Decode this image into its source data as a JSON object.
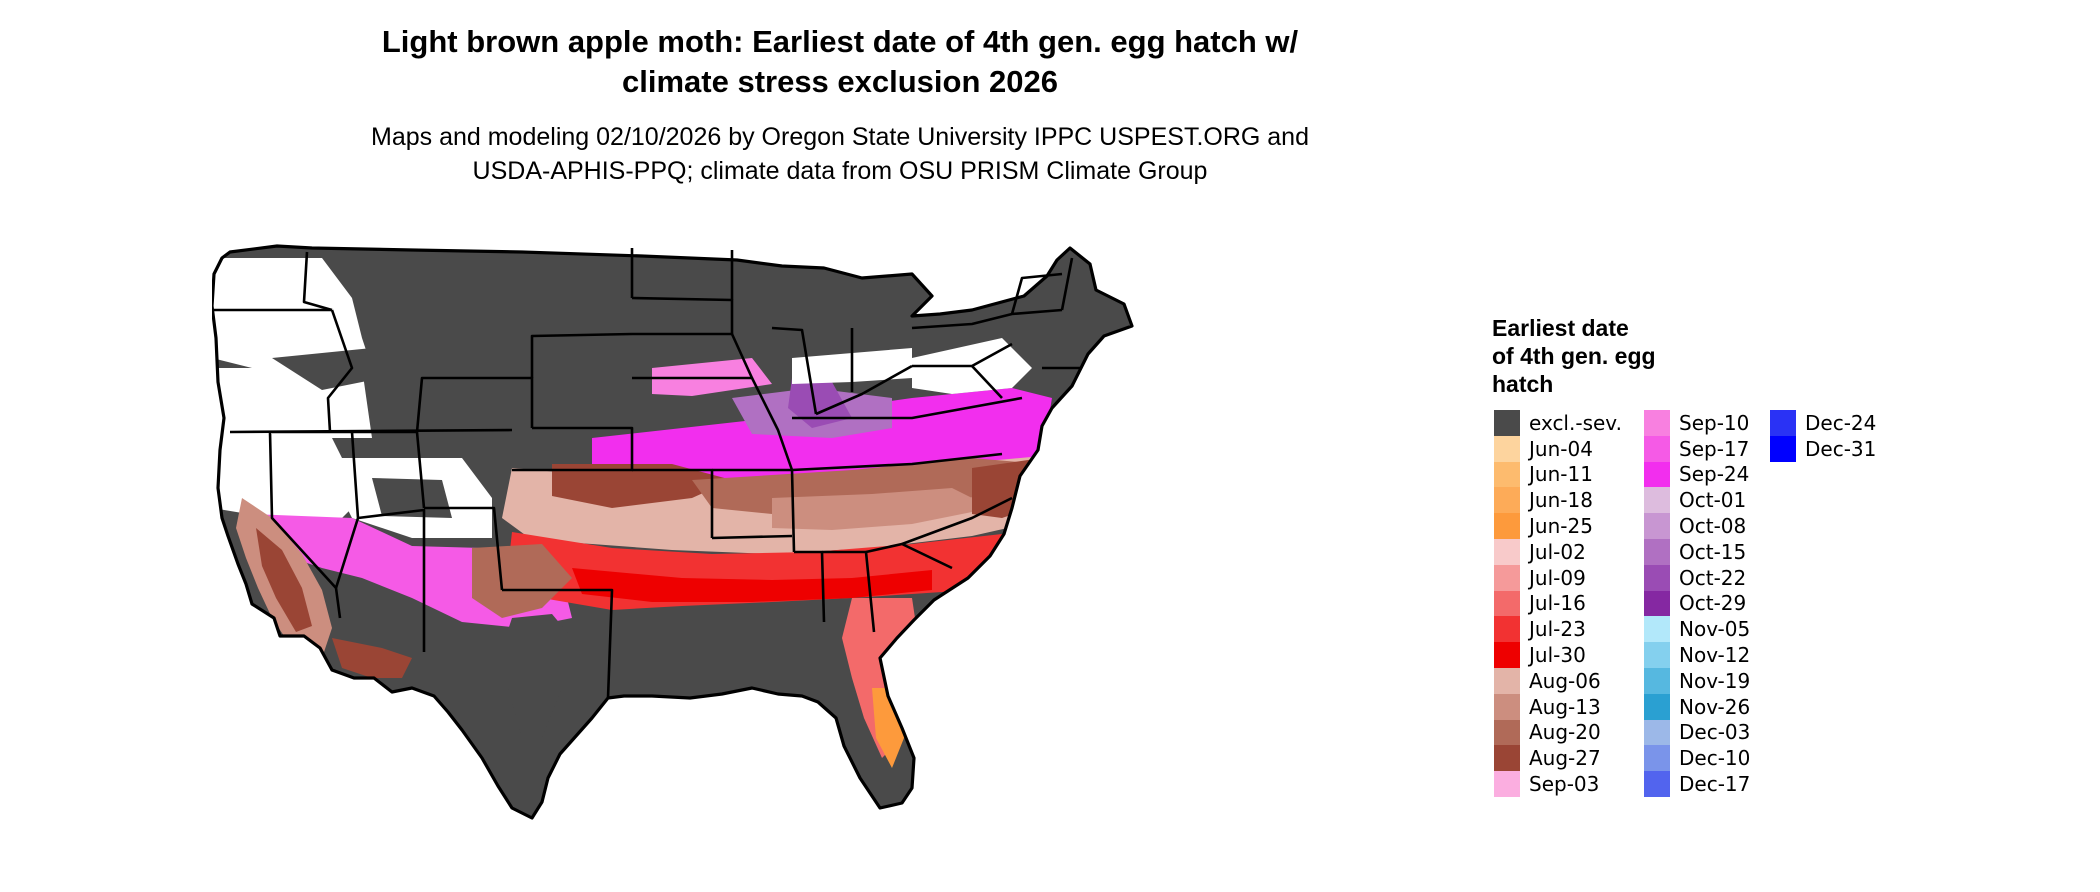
{
  "title_lines": [
    "Light brown apple moth: Earliest date of 4th gen. egg hatch w/",
    "climate stress exclusion 2026"
  ],
  "subtitle_lines": [
    "Maps and modeling 02/10/2026 by Oregon State University IPPC USPEST.ORG and",
    "USDA-APHIS-PPQ; climate data from OSU PRISM Climate Group"
  ],
  "legend": {
    "title_lines": [
      "Earliest date",
      "of 4th gen. egg",
      "hatch"
    ],
    "columns": [
      [
        {
          "label": "excl.-sev.",
          "color": "#4a4a4a"
        },
        {
          "label": "Jun-04",
          "color": "#fdd49e"
        },
        {
          "label": "Jun-11",
          "color": "#fdbb6e"
        },
        {
          "label": "Jun-18",
          "color": "#fdab58"
        },
        {
          "label": "Jun-25",
          "color": "#fd9a3c"
        },
        {
          "label": "Jul-02",
          "color": "#f8caca"
        },
        {
          "label": "Jul-09",
          "color": "#f59a9a"
        },
        {
          "label": "Jul-16",
          "color": "#f36a6a"
        },
        {
          "label": "Jul-23",
          "color": "#f23232"
        },
        {
          "label": "Jul-30",
          "color": "#ee0000"
        },
        {
          "label": "Aug-06",
          "color": "#e3b4a8"
        },
        {
          "label": "Aug-13",
          "color": "#cc8e7f"
        },
        {
          "label": "Aug-20",
          "color": "#b06a58"
        },
        {
          "label": "Aug-27",
          "color": "#9a4535"
        },
        {
          "label": "Sep-03",
          "color": "#fbaee0"
        }
      ],
      [
        {
          "label": "Sep-10",
          "color": "#f880e0"
        },
        {
          "label": "Sep-17",
          "color": "#f55ae6"
        },
        {
          "label": "Sep-24",
          "color": "#f22eee"
        },
        {
          "label": "Oct-01",
          "color": "#ddbcde"
        },
        {
          "label": "Oct-08",
          "color": "#c896d2"
        },
        {
          "label": "Oct-15",
          "color": "#b070c2"
        },
        {
          "label": "Oct-22",
          "color": "#9a4cb4"
        },
        {
          "label": "Oct-29",
          "color": "#8528a2"
        },
        {
          "label": "Nov-05",
          "color": "#b2e8fa"
        },
        {
          "label": "Nov-12",
          "color": "#84d0ee"
        },
        {
          "label": "Nov-19",
          "color": "#56b8e0"
        },
        {
          "label": "Nov-26",
          "color": "#2aa0d2"
        },
        {
          "label": "Dec-03",
          "color": "#9cb8e8"
        },
        {
          "label": "Dec-10",
          "color": "#7a94ea"
        },
        {
          "label": "Dec-17",
          "color": "#5264ee"
        }
      ],
      [
        {
          "label": "Dec-24",
          "color": "#2a32f5"
        },
        {
          "label": "Dec-31",
          "color": "#0000ff"
        }
      ]
    ]
  },
  "map_colors": {
    "excluded": "#4a4a4a",
    "white": "#ffffff",
    "outline": "#000000"
  }
}
